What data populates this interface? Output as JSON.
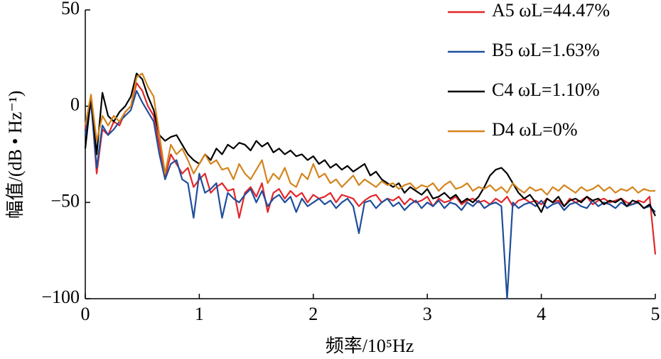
{
  "chart_data": {
    "type": "line",
    "x_label": "频率/10⁵Hz",
    "y_label": "幅值/(dB • Hz⁻¹)",
    "xlim": [
      0,
      5
    ],
    "xticks": [
      0,
      1,
      2,
      3,
      4,
      5
    ],
    "ylim": [
      -100,
      50
    ],
    "yticks": [
      {
        "value": -100,
        "label": "−100"
      },
      {
        "value": -50,
        "label": "−50"
      },
      0,
      50
    ],
    "legend": "upper-right",
    "x": [
      0,
      0.05,
      0.1,
      0.15,
      0.2,
      0.25,
      0.3,
      0.35,
      0.4,
      0.45,
      0.5,
      0.55,
      0.6,
      0.65,
      0.7,
      0.75,
      0.8,
      0.85,
      0.9,
      0.95,
      1,
      1.05,
      1.1,
      1.15,
      1.2,
      1.25,
      1.3,
      1.35,
      1.4,
      1.45,
      1.5,
      1.55,
      1.6,
      1.65,
      1.7,
      1.75,
      1.8,
      1.85,
      1.9,
      1.95,
      2,
      2.05,
      2.1,
      2.15,
      2.2,
      2.25,
      2.3,
      2.35,
      2.4,
      2.45,
      2.5,
      2.55,
      2.6,
      2.65,
      2.7,
      2.75,
      2.8,
      2.85,
      2.9,
      2.95,
      3,
      3.05,
      3.1,
      3.15,
      3.2,
      3.25,
      3.3,
      3.35,
      3.4,
      3.45,
      3.5,
      3.55,
      3.6,
      3.65,
      3.7,
      3.75,
      3.8,
      3.85,
      3.9,
      3.95,
      4,
      4.05,
      4.1,
      4.15,
      4.2,
      4.25,
      4.3,
      4.35,
      4.4,
      4.45,
      4.5,
      4.55,
      4.6,
      4.65,
      4.7,
      4.75,
      4.8,
      4.85,
      4.9,
      4.95,
      5
    ],
    "series": [
      {
        "name": "A5 ωL=44.47%",
        "color": "#e3262a",
        "values": [
          -12,
          4,
          -35,
          -12,
          -15,
          -8,
          -10,
          -3,
          0,
          12,
          8,
          0,
          -5,
          -20,
          -37,
          -25,
          -30,
          -35,
          -32,
          -42,
          -38,
          -35,
          -45,
          -42,
          -40,
          -44,
          -43,
          -58,
          -45,
          -42,
          -47,
          -40,
          -55,
          -45,
          -43,
          -48,
          -44,
          -47,
          -45,
          -50,
          -46,
          -48,
          -47,
          -45,
          -50,
          -46,
          -47,
          -48,
          -52,
          -49,
          -47,
          -46,
          -50,
          -48,
          -49,
          -47,
          -51,
          -48,
          -50,
          -49,
          -47,
          -52,
          -48,
          -50,
          -49,
          -47,
          -51,
          -49,
          -48,
          -50,
          -49,
          -51,
          -48,
          -50,
          -47,
          -52,
          -49,
          -48,
          -50,
          -49,
          -51,
          -48,
          -50,
          -49,
          -52,
          -48,
          -50,
          -49,
          -47,
          -51,
          -49,
          -48,
          -50,
          -49,
          -48,
          -50,
          -51,
          -49,
          -50,
          -47,
          -77
        ]
      },
      {
        "name": "B5 ωL=1.63%",
        "color": "#1f4e9c",
        "values": [
          -15,
          2,
          -32,
          -10,
          -15,
          -12,
          -8,
          -5,
          -2,
          8,
          2,
          -3,
          -8,
          -25,
          -38,
          -30,
          -28,
          -38,
          -40,
          -58,
          -35,
          -45,
          -43,
          -40,
          -58,
          -45,
          -48,
          -50,
          -46,
          -43,
          -50,
          -44,
          -52,
          -48,
          -46,
          -50,
          -47,
          -55,
          -48,
          -52,
          -50,
          -48,
          -51,
          -49,
          -53,
          -50,
          -48,
          -52,
          -66,
          -50,
          -49,
          -53,
          -50,
          -48,
          -52,
          -50,
          -54,
          -51,
          -49,
          -53,
          -50,
          -52,
          -49,
          -53,
          -50,
          -51,
          -54,
          -50,
          -52,
          -49,
          -53,
          -51,
          -50,
          -52,
          -100,
          -50,
          -53,
          -51,
          -50,
          -52,
          -49,
          -53,
          -51,
          -50,
          -54,
          -51,
          -50,
          -52,
          -53,
          -49,
          -52,
          -50,
          -51,
          -53,
          -50,
          -52,
          -51,
          -50,
          -53,
          -52,
          -55
        ]
      },
      {
        "name": "C4 ωL=1.10%",
        "color": "#000000",
        "values": [
          -22,
          5,
          -25,
          7,
          -5,
          -8,
          -3,
          0,
          5,
          17,
          14,
          5,
          -2,
          -15,
          -18,
          -16,
          -15,
          -20,
          -25,
          -28,
          -30,
          -25,
          -28,
          -22,
          -25,
          -20,
          -22,
          -19,
          -20,
          -23,
          -18,
          -21,
          -19,
          -24,
          -22,
          -25,
          -23,
          -26,
          -25,
          -28,
          -26,
          -30,
          -28,
          -32,
          -30,
          -33,
          -31,
          -34,
          -32,
          -30,
          -36,
          -34,
          -38,
          -40,
          -42,
          -40,
          -45,
          -42,
          -44,
          -46,
          -43,
          -48,
          -47,
          -45,
          -48,
          -46,
          -50,
          -48,
          -50,
          -47,
          -42,
          -36,
          -33,
          -32,
          -35,
          -40,
          -45,
          -48,
          -46,
          -50,
          -55,
          -48,
          -50,
          -47,
          -52,
          -49,
          -48,
          -50,
          -47,
          -49,
          -48,
          -51,
          -49,
          -50,
          -48,
          -52,
          -49,
          -50,
          -53,
          -51,
          -57
        ]
      },
      {
        "name": "D4 ωL=0%",
        "color": "#d4841c",
        "values": [
          -10,
          6,
          -18,
          -5,
          -10,
          -5,
          -8,
          -3,
          0,
          15,
          17,
          10,
          5,
          -15,
          -35,
          -20,
          -25,
          -22,
          -28,
          -35,
          -30,
          -25,
          -30,
          -28,
          -33,
          -32,
          -38,
          -30,
          -35,
          -38,
          -33,
          -28,
          -40,
          -35,
          -38,
          -32,
          -40,
          -42,
          -35,
          -38,
          -30,
          -37,
          -35,
          -40,
          -38,
          -42,
          -39,
          -36,
          -41,
          -38,
          -40,
          -42,
          -39,
          -41,
          -40,
          -43,
          -41,
          -40,
          -43,
          -41,
          -42,
          -40,
          -44,
          -41,
          -39,
          -43,
          -42,
          -40,
          -44,
          -42,
          -43,
          -41,
          -44,
          -42,
          -45,
          -40,
          -43,
          -45,
          -42,
          -44,
          -43,
          -46,
          -42,
          -44,
          -41,
          -43,
          -45,
          -42,
          -44,
          -43,
          -41,
          -44,
          -42,
          -45,
          -43,
          -44,
          -42,
          -45,
          -43,
          -44,
          -44
        ]
      }
    ]
  }
}
